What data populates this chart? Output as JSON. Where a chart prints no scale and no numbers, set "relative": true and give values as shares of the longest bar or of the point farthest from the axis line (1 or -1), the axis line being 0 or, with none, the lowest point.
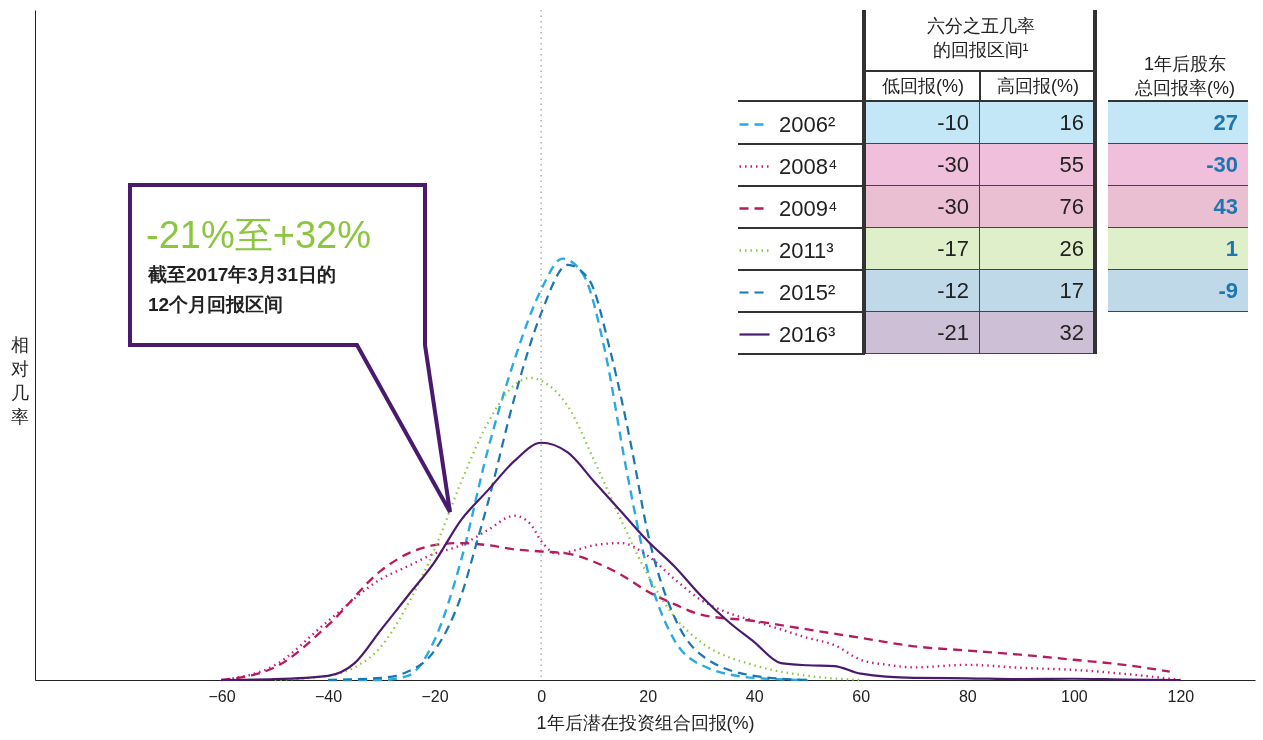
{
  "chart_data": {
    "type": "line",
    "relative": true,
    "xlabel": "1年后潜在投资组合回报(%)",
    "ylabel": "相对几率",
    "xlim": [
      -95,
      134
    ],
    "xticks": [
      -60,
      -40,
      -20,
      0,
      20,
      40,
      60,
      80,
      100,
      120
    ],
    "grid": false,
    "legend": "top right",
    "marker": "none",
    "ref_lines": [
      {
        "axis": "x",
        "value": 0,
        "line_style": "dotted",
        "color": "#888888"
      }
    ],
    "annotations": [
      "-21%至+32%",
      "截至2017年3月31日的",
      "12个月回报区间",
      "六分之五几率的回报区间¹",
      "低回报(%)",
      "高回报(%)",
      "1年后股东总回报率(%)",
      "-10",
      "16",
      "27",
      "-30",
      "55",
      "-30",
      "-30",
      "76",
      "43",
      "-17",
      "26",
      "1",
      "-12",
      "17",
      "-9",
      "-21",
      "32"
    ],
    "series": [
      {
        "name": "2006²",
        "color": "#29aae1",
        "line_style": "dashed",
        "x": [
          -40,
          -30,
          -25,
          -20,
          -15,
          -10,
          -5,
          0,
          4,
          8,
          12,
          16,
          20,
          25,
          30,
          40,
          50
        ],
        "values": [
          0,
          0,
          0.01,
          0.095,
          0.285,
          0.546,
          0.76,
          0.926,
          1,
          0.96,
          0.78,
          0.5,
          0.26,
          0.095,
          0.036,
          0.005,
          0
        ]
      },
      {
        "name": "2008⁴",
        "color": "#c8197f",
        "line_style": "dotted",
        "x": [
          -60,
          -50,
          -40,
          -30,
          -25,
          -20,
          -15,
          -10,
          -5,
          -2,
          0,
          3,
          7,
          10,
          15,
          20,
          25,
          30,
          35,
          40,
          45,
          50,
          55,
          60,
          65,
          70,
          80,
          90,
          100,
          110,
          120
        ],
        "values": [
          0,
          0.035,
          0.14,
          0.24,
          0.27,
          0.3,
          0.32,
          0.356,
          0.39,
          0.37,
          0.33,
          0.3,
          0.31,
          0.32,
          0.325,
          0.295,
          0.24,
          0.19,
          0.16,
          0.14,
          0.12,
          0.1,
          0.083,
          0.048,
          0.036,
          0.03,
          0.036,
          0.029,
          0.024,
          0.014,
          0
        ]
      },
      {
        "name": "2009⁴",
        "color": "#b81a5e",
        "line_style": "dashed",
        "x": [
          -60,
          -50,
          -40,
          -30,
          -25,
          -20,
          -15,
          -10,
          -5,
          0,
          5,
          10,
          15,
          20,
          25,
          30,
          40,
          50,
          60,
          70,
          80,
          90,
          100,
          110,
          118
        ],
        "values": [
          0,
          0.03,
          0.13,
          0.26,
          0.3,
          0.32,
          0.325,
          0.32,
          0.31,
          0.305,
          0.3,
          0.28,
          0.25,
          0.21,
          0.18,
          0.155,
          0.14,
          0.12,
          0.1,
          0.08,
          0.07,
          0.06,
          0.048,
          0.035,
          0.02
        ]
      },
      {
        "name": "2011³",
        "color": "#8cc63f",
        "line_style": "dotted",
        "x": [
          -50,
          -40,
          -35,
          -30,
          -25,
          -20,
          -15,
          -10,
          -5,
          -2,
          0,
          5,
          10,
          15,
          20,
          25,
          30,
          40,
          50,
          60
        ],
        "values": [
          0,
          0.01,
          0.03,
          0.08,
          0.18,
          0.31,
          0.47,
          0.61,
          0.7,
          0.717,
          0.71,
          0.65,
          0.52,
          0.38,
          0.25,
          0.15,
          0.09,
          0.035,
          0.01,
          0
        ]
      },
      {
        "name": "2015²",
        "color": "#1c77b0",
        "line_style": "dashed",
        "x": [
          -40,
          -30,
          -25,
          -20,
          -15,
          -12,
          -10,
          -5,
          0,
          5,
          9,
          13,
          17,
          20,
          25,
          30,
          40,
          50
        ],
        "values": [
          0,
          0.005,
          0.02,
          0.07,
          0.2,
          0.33,
          0.42,
          0.67,
          0.87,
          0.985,
          0.95,
          0.78,
          0.55,
          0.35,
          0.15,
          0.06,
          0.01,
          0
        ]
      },
      {
        "name": "2016³",
        "color": "#4a1a6e",
        "line_style": "solid",
        "x": [
          -60,
          -50,
          -40,
          -35,
          -30,
          -25,
          -20,
          -15,
          -10,
          -5,
          0,
          5,
          10,
          15,
          20,
          25,
          30,
          35,
          40,
          45,
          50,
          55,
          60,
          70,
          80,
          90,
          100,
          110,
          120
        ],
        "values": [
          0,
          0.002,
          0.01,
          0.04,
          0.12,
          0.2,
          0.28,
          0.38,
          0.45,
          0.52,
          0.563,
          0.54,
          0.47,
          0.4,
          0.33,
          0.27,
          0.2,
          0.14,
          0.09,
          0.04,
          0.035,
          0.033,
          0.015,
          0.005,
          0.004,
          0.002,
          0.003,
          0.001,
          0
        ]
      }
    ]
  }
}
